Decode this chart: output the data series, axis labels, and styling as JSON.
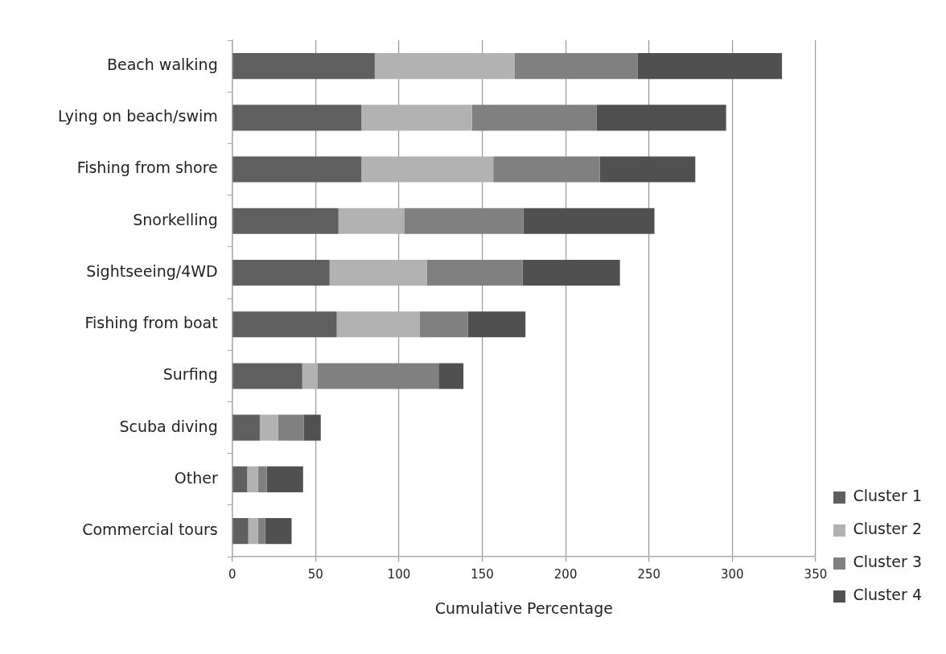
{
  "chart_data": {
    "type": "bar",
    "orientation": "horizontal",
    "stacked": true,
    "xlabel": "Cumulative Percentage",
    "categories": [
      "Beach walking",
      "Lying on beach/swim",
      "Fishing from shore",
      "Snorkelling",
      "Sightseeing/4WD",
      "Fishing from boat",
      "Surfing",
      "Scuba diving",
      "Other",
      "Commercial tours"
    ],
    "series": [
      {
        "name": "Cluster 1",
        "color": "#5f5f5f",
        "values": [
          85.5,
          77.5,
          77.5,
          63.7,
          58.4,
          62.7,
          42,
          16.5,
          9,
          9.6
        ]
      },
      {
        "name": "Cluster 2",
        "color": "#b2b2b2",
        "values": [
          84,
          66.3,
          79.1,
          39.4,
          58.3,
          49.9,
          9,
          11.1,
          6.4,
          5.8
        ]
      },
      {
        "name": "Cluster 3",
        "color": "#808080",
        "values": [
          73.8,
          74.9,
          63.9,
          71.6,
          57.5,
          28.7,
          72.8,
          15.4,
          5.3,
          4.3
        ]
      },
      {
        "name": "Cluster 4",
        "color": "#505050",
        "values": [
          86.5,
          77.6,
          57.3,
          78.6,
          58.4,
          34.6,
          14.9,
          10.1,
          21.8,
          15.9
        ]
      }
    ],
    "xlim": [
      0,
      350
    ],
    "xticks": [
      0,
      50,
      100,
      150,
      200,
      250,
      300,
      350
    ],
    "grid": "x",
    "legend": "right"
  }
}
